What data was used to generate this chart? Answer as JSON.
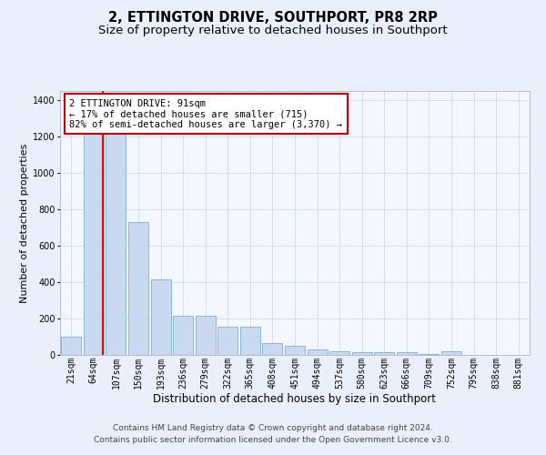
{
  "title": "2, ETTINGTON DRIVE, SOUTHPORT, PR8 2RP",
  "subtitle": "Size of property relative to detached houses in Southport",
  "xlabel": "Distribution of detached houses by size in Southport",
  "ylabel": "Number of detached properties",
  "categories": [
    "21sqm",
    "64sqm",
    "107sqm",
    "150sqm",
    "193sqm",
    "236sqm",
    "279sqm",
    "322sqm",
    "365sqm",
    "408sqm",
    "451sqm",
    "494sqm",
    "537sqm",
    "580sqm",
    "623sqm",
    "666sqm",
    "709sqm",
    "752sqm",
    "795sqm",
    "838sqm",
    "881sqm"
  ],
  "values": [
    100,
    1220,
    1220,
    730,
    415,
    215,
    215,
    155,
    155,
    65,
    48,
    30,
    20,
    16,
    15,
    15,
    5,
    20,
    0,
    0,
    0
  ],
  "bar_color": "#c9d9f0",
  "bar_edge_color": "#7bafd4",
  "redline_x": 1.42,
  "annotation_line1": "2 ETTINGTON DRIVE: 91sqm",
  "annotation_line2": "← 17% of detached houses are smaller (715)",
  "annotation_line3": "82% of semi-detached houses are larger (3,370) →",
  "annotation_box_color": "#ffffff",
  "annotation_box_edge": "#cc0000",
  "ylim": [
    0,
    1450
  ],
  "yticks": [
    0,
    200,
    400,
    600,
    800,
    1000,
    1200,
    1400
  ],
  "footer1": "Contains HM Land Registry data © Crown copyright and database right 2024.",
  "footer2": "Contains public sector information licensed under the Open Government Licence v3.0.",
  "background_color": "#eaf0fb",
  "plot_bg_color": "#f4f7fd",
  "grid_color": "#d0daea",
  "title_fontsize": 10.5,
  "subtitle_fontsize": 9.5,
  "xlabel_fontsize": 8.5,
  "ylabel_fontsize": 8,
  "tick_fontsize": 7,
  "annotation_fontsize": 7.5,
  "footer_fontsize": 6.5
}
